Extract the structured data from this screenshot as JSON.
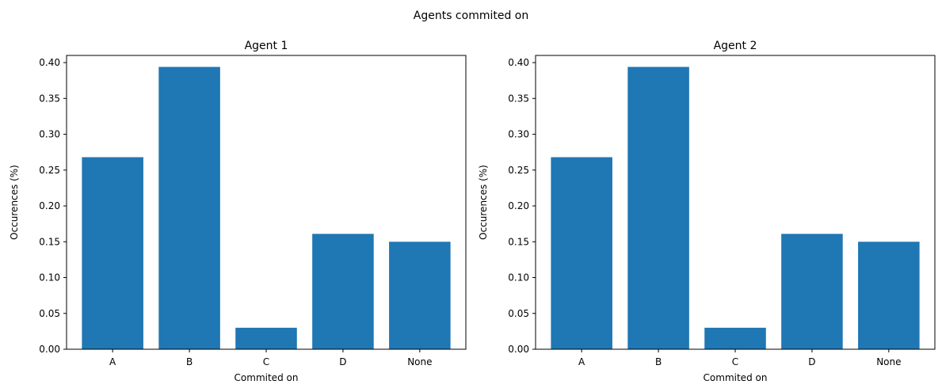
{
  "figure": {
    "suptitle": "Agents commited on"
  },
  "chart_data": [
    {
      "type": "bar",
      "title": "Agent 1",
      "xlabel": "Commited on",
      "ylabel": "Occurences (%)",
      "categories": [
        "A",
        "B",
        "C",
        "D",
        "None"
      ],
      "values": [
        0.268,
        0.394,
        0.03,
        0.161,
        0.15
      ],
      "ylim": [
        0,
        0.41
      ],
      "yticks": [
        "0.00",
        "0.05",
        "0.10",
        "0.15",
        "0.20",
        "0.25",
        "0.30",
        "0.35",
        "0.40"
      ],
      "grid": false,
      "bar_color": "#1f77b4"
    },
    {
      "type": "bar",
      "title": "Agent 2",
      "xlabel": "Commited on",
      "ylabel": "Occurences (%)",
      "categories": [
        "A",
        "B",
        "C",
        "D",
        "None"
      ],
      "values": [
        0.268,
        0.394,
        0.03,
        0.161,
        0.15
      ],
      "ylim": [
        0,
        0.41
      ],
      "yticks": [
        "0.00",
        "0.05",
        "0.10",
        "0.15",
        "0.20",
        "0.25",
        "0.30",
        "0.35",
        "0.40"
      ],
      "grid": false,
      "bar_color": "#1f77b4"
    }
  ]
}
